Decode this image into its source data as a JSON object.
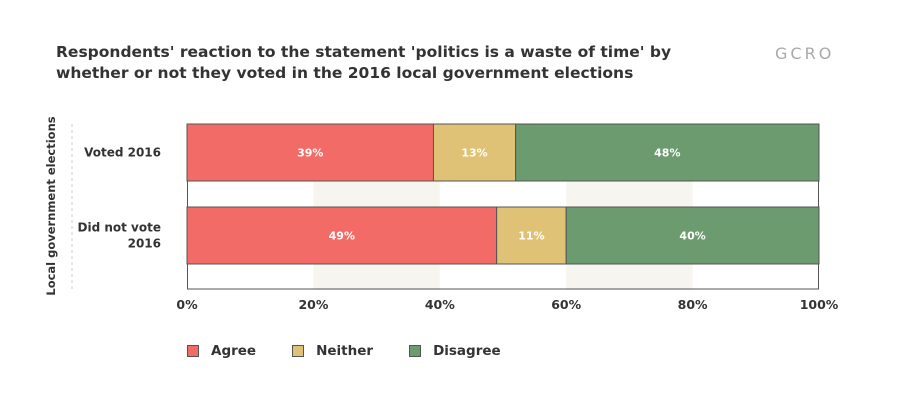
{
  "title": "Respondents' reaction to the statement 'politics is a waste of time' by whether or not they voted in the 2016 local government elections",
  "logo": "GCRO",
  "colors": {
    "agree": "#f26b66",
    "neither": "#dfc276",
    "disagree": "#6c9b6f",
    "band": "#f7f5ef",
    "text": "#333333"
  },
  "chart_data": {
    "type": "bar",
    "orientation": "horizontal",
    "stacked": true,
    "ylabel": "Local government elections",
    "categories": [
      "Voted 2016",
      "Did not vote 2016"
    ],
    "series": [
      {
        "name": "Agree",
        "values": [
          39,
          49
        ]
      },
      {
        "name": "Neither",
        "values": [
          13,
          11
        ]
      },
      {
        "name": "Disagree",
        "values": [
          48,
          40
        ]
      }
    ],
    "value_labels": [
      [
        "39%",
        "13%",
        "48%"
      ],
      [
        "49%",
        "11%",
        "40%"
      ]
    ],
    "xlim": [
      0,
      100
    ],
    "xticks": [
      "0%",
      "20%",
      "40%",
      "60%",
      "80%",
      "100%"
    ],
    "legend_position": "bottom-left",
    "grid": "alternating vertical bands"
  }
}
